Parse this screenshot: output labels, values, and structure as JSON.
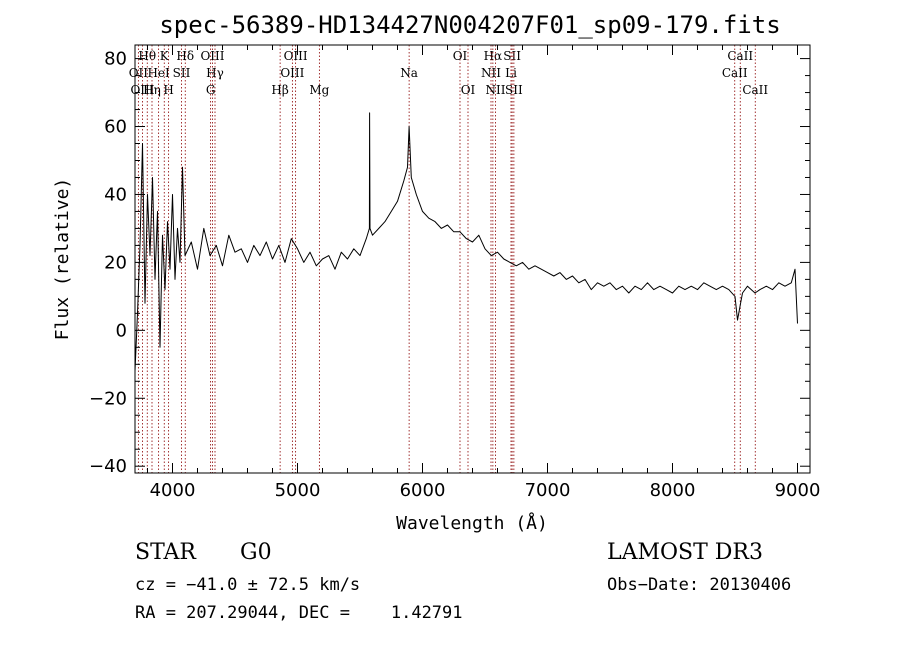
{
  "chart_data": {
    "type": "line",
    "title": "spec-56389-HD134427N004207F01_sp09-179.fits",
    "xlabel": "Wavelength (Å)",
    "ylabel": "Flux (relative)",
    "xlim": [
      3700,
      9100
    ],
    "ylim": [
      -42,
      84
    ],
    "xticks": [
      4000,
      5000,
      6000,
      7000,
      8000,
      9000
    ],
    "yticks": [
      -40,
      -20,
      0,
      20,
      40,
      60,
      80
    ],
    "grid": false,
    "series": [
      {
        "x": [
          3700,
          3720,
          3740,
          3760,
          3780,
          3800,
          3820,
          3840,
          3860,
          3880,
          3900,
          3920,
          3940,
          3960,
          3980,
          4000,
          4020,
          4040,
          4060,
          4080,
          4100,
          4150,
          4200,
          4250,
          4300,
          4350,
          4400,
          4450,
          4500,
          4550,
          4600,
          4650,
          4700,
          4750,
          4800,
          4850,
          4900,
          4950,
          5000,
          5050,
          5100,
          5150,
          5200,
          5250,
          5300,
          5350,
          5400,
          5450,
          5500,
          5550,
          5575,
          5577,
          5580,
          5600,
          5650,
          5700,
          5750,
          5800,
          5850,
          5880,
          5893,
          5910,
          5950,
          6000,
          6050,
          6100,
          6150,
          6200,
          6250,
          6300,
          6350,
          6400,
          6450,
          6500,
          6550,
          6600,
          6650,
          6700,
          6750,
          6800,
          6850,
          6900,
          6950,
          7000,
          7050,
          7100,
          7150,
          7200,
          7250,
          7300,
          7350,
          7400,
          7450,
          7500,
          7550,
          7600,
          7650,
          7700,
          7750,
          7800,
          7850,
          7900,
          7950,
          8000,
          8050,
          8100,
          8150,
          8200,
          8250,
          8300,
          8350,
          8400,
          8450,
          8500,
          8520,
          8545,
          8560,
          8600,
          8660,
          8700,
          8750,
          8800,
          8850,
          8900,
          8950,
          8980,
          9000
        ],
        "y": [
          -12,
          5,
          25,
          55,
          8,
          40,
          22,
          45,
          15,
          35,
          -5,
          28,
          12,
          32,
          18,
          40,
          15,
          30,
          20,
          48,
          22,
          26,
          18,
          30,
          22,
          25,
          19,
          28,
          23,
          24,
          20,
          25,
          22,
          26,
          21,
          25,
          20,
          27,
          24,
          20,
          23,
          19,
          21,
          22,
          18,
          23,
          21,
          24,
          22,
          27,
          30,
          64,
          30,
          28,
          30,
          32,
          35,
          38,
          44,
          48,
          60,
          45,
          40,
          35,
          33,
          32,
          30,
          31,
          29,
          29,
          27,
          26,
          28,
          24,
          22,
          23,
          21,
          20,
          19,
          20,
          18,
          19,
          18,
          17,
          16,
          17,
          15,
          16,
          14,
          15,
          12,
          14,
          13,
          14,
          12,
          13,
          11,
          13,
          12,
          14,
          12,
          13,
          12,
          11,
          13,
          12,
          13,
          12,
          14,
          13,
          12,
          13,
          12,
          10,
          3,
          8,
          11,
          13,
          11,
          12,
          13,
          12,
          14,
          13,
          14,
          18,
          2
        ]
      }
    ],
    "spectral_lines": [
      {
        "label": "Hθ",
        "x": 3798,
        "row": 0
      },
      {
        "label": "OII",
        "x": 3727,
        "row": 1
      },
      {
        "label": "OIII",
        "x": 3760,
        "row": 2
      },
      {
        "label": "Hη",
        "x": 3836,
        "row": 2
      },
      {
        "label": "HeI",
        "x": 3889,
        "row": 1
      },
      {
        "label": "K",
        "x": 3934,
        "row": 0
      },
      {
        "label": "H",
        "x": 3969,
        "row": 2
      },
      {
        "label": "SII",
        "x": 4072,
        "row": 1
      },
      {
        "label": "Hδ",
        "x": 4102,
        "row": 0
      },
      {
        "label": "OIII",
        "x": 4320,
        "row": 0
      },
      {
        "label": "Hγ",
        "x": 4340,
        "row": 1
      },
      {
        "label": "G",
        "x": 4305,
        "row": 2
      },
      {
        "label": "Hβ",
        "x": 4861,
        "row": 2
      },
      {
        "label": "OIII",
        "x": 4985,
        "row": 0
      },
      {
        "label": "OIII",
        "x": 4959,
        "row": 1
      },
      {
        "label": "Mg",
        "x": 5175,
        "row": 2
      },
      {
        "label": "Na",
        "x": 5893,
        "row": 1
      },
      {
        "label": "OI",
        "x": 6300,
        "row": 0
      },
      {
        "label": "OI",
        "x": 6364,
        "row": 2
      },
      {
        "label": "Hα",
        "x": 6563,
        "row": 0
      },
      {
        "label": "NII",
        "x": 6548,
        "row": 1
      },
      {
        "label": "NII",
        "x": 6584,
        "row": 2
      },
      {
        "label": "SII",
        "x": 6717,
        "row": 0
      },
      {
        "label": "Li",
        "x": 6708,
        "row": 1
      },
      {
        "label": "SII",
        "x": 6731,
        "row": 2
      },
      {
        "label": "CaII",
        "x": 8542,
        "row": 0
      },
      {
        "label": "CaII",
        "x": 8498,
        "row": 1
      },
      {
        "label": "CaII",
        "x": 8662,
        "row": 2
      }
    ]
  },
  "info": {
    "class_label": "STAR",
    "subclass": "G0",
    "redshift": "cz = −41.0 ± 72.5 km/s",
    "coords": "RA = 207.29044, DEC =    1.42791",
    "survey": "LAMOST DR3",
    "obs_date": "Obs−Date: 20130406"
  },
  "colors": {
    "spectrum": "#000000",
    "line_marker": "#8b0000"
  }
}
